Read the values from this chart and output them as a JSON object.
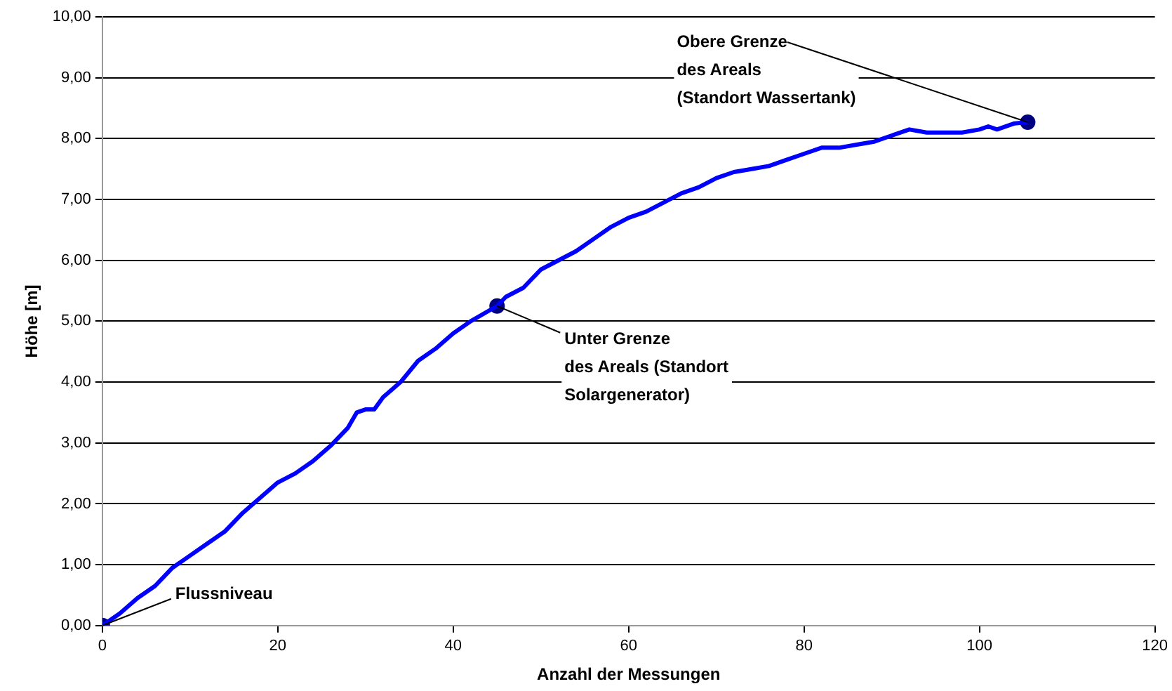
{
  "chart_data": {
    "type": "line",
    "xlabel": "Anzahl der Messungen",
    "ylabel": "Höhe [m]",
    "xlim": [
      0,
      120
    ],
    "xticks": [
      0,
      20,
      40,
      60,
      80,
      100,
      120
    ],
    "ylim": [
      0,
      10
    ],
    "yticks": [
      {
        "value": 0,
        "label": "0,00"
      },
      {
        "value": 1,
        "label": "1,00"
      },
      {
        "value": 2,
        "label": "2,00"
      },
      {
        "value": 3,
        "label": "3,00"
      },
      {
        "value": 4,
        "label": "4,00"
      },
      {
        "value": 5,
        "label": "5,00"
      },
      {
        "value": 6,
        "label": "6,00"
      },
      {
        "value": 7,
        "label": "7,00"
      },
      {
        "value": 8,
        "label": "8,00"
      },
      {
        "value": 9,
        "label": "9,00"
      },
      {
        "value": 10,
        "label": "10,00"
      }
    ],
    "grid": "y",
    "legend": false,
    "series": [
      {
        "type": "line",
        "color": "#0000ff",
        "marker": "none",
        "x": [
          0,
          2,
          4,
          6,
          8,
          10,
          12,
          14,
          16,
          18,
          20,
          22,
          24,
          26,
          28,
          29,
          30,
          31,
          32,
          34,
          36,
          38,
          40,
          42,
          45,
          46,
          48,
          50,
          52,
          54,
          56,
          58,
          60,
          62,
          64,
          66,
          68,
          70,
          72,
          74,
          76,
          78,
          80,
          82,
          84,
          86,
          88,
          90,
          92,
          94,
          96,
          98,
          100,
          101,
          102,
          104,
          105.5
        ],
        "values": [
          0,
          0.2,
          0.45,
          0.65,
          0.95,
          1.15,
          1.35,
          1.55,
          1.85,
          2.1,
          2.35,
          2.5,
          2.7,
          2.95,
          3.25,
          3.5,
          3.55,
          3.55,
          3.75,
          4.0,
          4.35,
          4.55,
          4.8,
          5.0,
          5.25,
          5.4,
          5.55,
          5.85,
          6.0,
          6.15,
          6.35,
          6.55,
          6.7,
          6.8,
          6.95,
          7.1,
          7.2,
          7.35,
          7.45,
          7.5,
          7.55,
          7.65,
          7.75,
          7.85,
          7.85,
          7.9,
          7.95,
          8.05,
          8.15,
          8.1,
          8.1,
          8.1,
          8.15,
          8.2,
          8.15,
          8.25,
          8.27
        ]
      },
      {
        "type": "scatter",
        "color": "#000080",
        "marker": "circle",
        "x": [
          0,
          45,
          105.5
        ],
        "values": [
          0,
          5.25,
          8.27
        ]
      }
    ],
    "annotations": [
      {
        "text": "Flussniveau",
        "x": 0,
        "y": 0
      },
      {
        "text": "Unter Grenze\ndes Areals (Standort\nSolargenerator)",
        "x": 45,
        "y": 5.25
      },
      {
        "text": "Obere Grenze\ndes Areals\n(Standort Wassertank)",
        "x": 105.5,
        "y": 8.27
      }
    ]
  }
}
